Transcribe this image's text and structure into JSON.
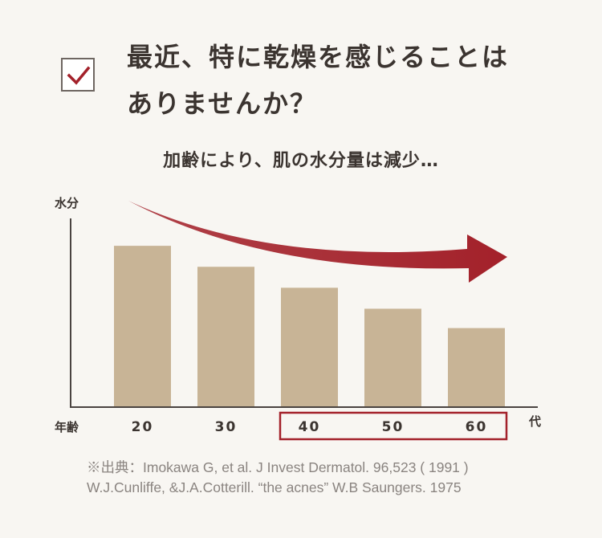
{
  "headline": {
    "line1": "最近、特に乾燥を感じることは",
    "line2": "ありませんか？"
  },
  "checkbox": {
    "checked": true
  },
  "colors": {
    "background": "#f8f6f2",
    "bar": "#c8b496",
    "arrow": "#a3212a",
    "highlight_box": "#a3212a",
    "axis": "#4a4340",
    "text": "#3b3430"
  },
  "subtitle": "加齢により、肌の水分量は減少…",
  "chart_data": {
    "type": "bar",
    "ylabel": "水分",
    "xlabel_left": "年齢",
    "xlabel_right": "代",
    "categories": [
      "20",
      "30",
      "40",
      "50",
      "60"
    ],
    "values": [
      100,
      87,
      74,
      61,
      49
    ],
    "ylim": [
      0,
      115
    ],
    "y_ticks_shown": false,
    "grid": false,
    "highlighted_categories": [
      "40",
      "50",
      "60"
    ],
    "trend_arrow": "decreasing"
  },
  "source": {
    "line1": "※出典：Imokawa G, et al. J Invest Dermatol. 96,523 ( 1991 )",
    "line2": "W.J.Cunliffe, &J.A.Cotterill. “the acnes” W.B Saungers. 1975"
  }
}
